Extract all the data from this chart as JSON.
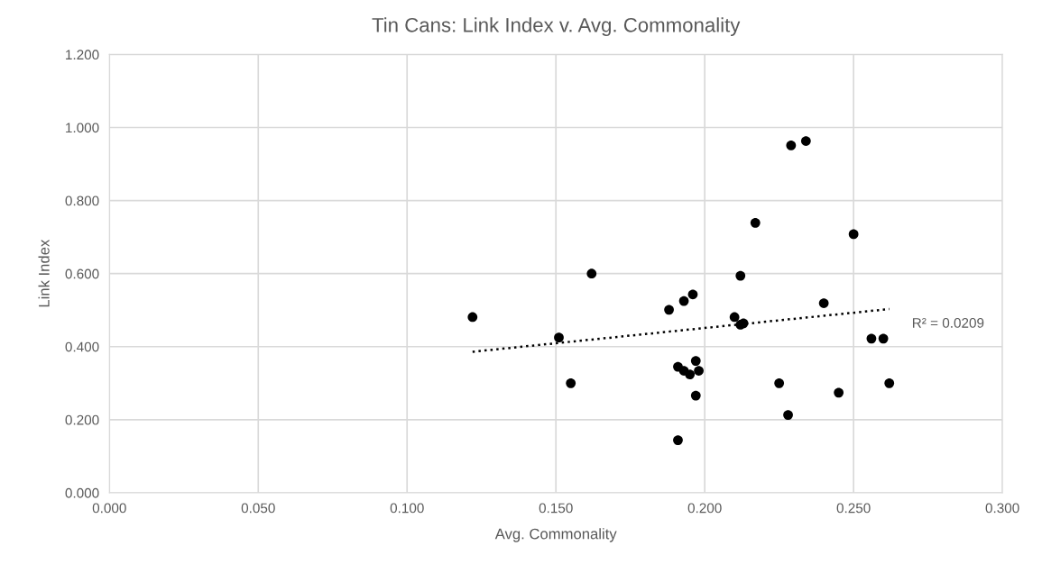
{
  "chart_data": {
    "type": "scatter",
    "title": "Tin Cans: Link Index v. Avg. Commonality",
    "xlabel": "Avg. Commonality",
    "ylabel": "Link Index",
    "series": [
      {
        "color": "#000000",
        "marker": "circle",
        "x": [
          0.122,
          0.151,
          0.155,
          0.162,
          0.188,
          0.193,
          0.196,
          0.191,
          0.193,
          0.195,
          0.197,
          0.198,
          0.197,
          0.191,
          0.21,
          0.212,
          0.213,
          0.212,
          0.217,
          0.229,
          0.234,
          0.225,
          0.228,
          0.24,
          0.245,
          0.25,
          0.256,
          0.26,
          0.262
        ],
        "values": [
          0.481,
          0.425,
          0.3,
          0.6,
          0.501,
          0.525,
          0.543,
          0.345,
          0.334,
          0.324,
          0.361,
          0.334,
          0.266,
          0.144,
          0.481,
          0.46,
          0.464,
          0.594,
          0.739,
          0.951,
          0.963,
          0.3,
          0.213,
          0.519,
          0.274,
          0.708,
          0.422,
          0.422,
          0.3
        ]
      },
      {
        "type": "line",
        "color": "#000000",
        "line_style": "dotted",
        "x": [
          0.122,
          0.262
        ],
        "values": [
          0.386,
          0.503
        ]
      }
    ],
    "annotations": [
      {
        "text": "R² = 0.0209",
        "x": 0.262,
        "y": 0.503
      }
    ],
    "xlim": [
      0,
      0.3
    ],
    "xticks": [
      {
        "value": 0,
        "label": "0.000"
      },
      {
        "value": 0.05,
        "label": "0.050"
      },
      {
        "value": 0.1,
        "label": "0.100"
      },
      {
        "value": 0.15,
        "label": "0.150"
      },
      {
        "value": 0.2,
        "label": "0.200"
      },
      {
        "value": 0.25,
        "label": "0.250"
      },
      {
        "value": 0.3,
        "label": "0.300"
      }
    ],
    "ylim": [
      0,
      1.2
    ],
    "yticks": [
      {
        "value": 0,
        "label": "0.000"
      },
      {
        "value": 0.2,
        "label": "0.200"
      },
      {
        "value": 0.4,
        "label": "0.400"
      },
      {
        "value": 0.6,
        "label": "0.600"
      },
      {
        "value": 0.8,
        "label": "0.800"
      },
      {
        "value": 1.0,
        "label": "1.000"
      },
      {
        "value": 1.2,
        "label": "1.200"
      }
    ],
    "grid": true
  }
}
